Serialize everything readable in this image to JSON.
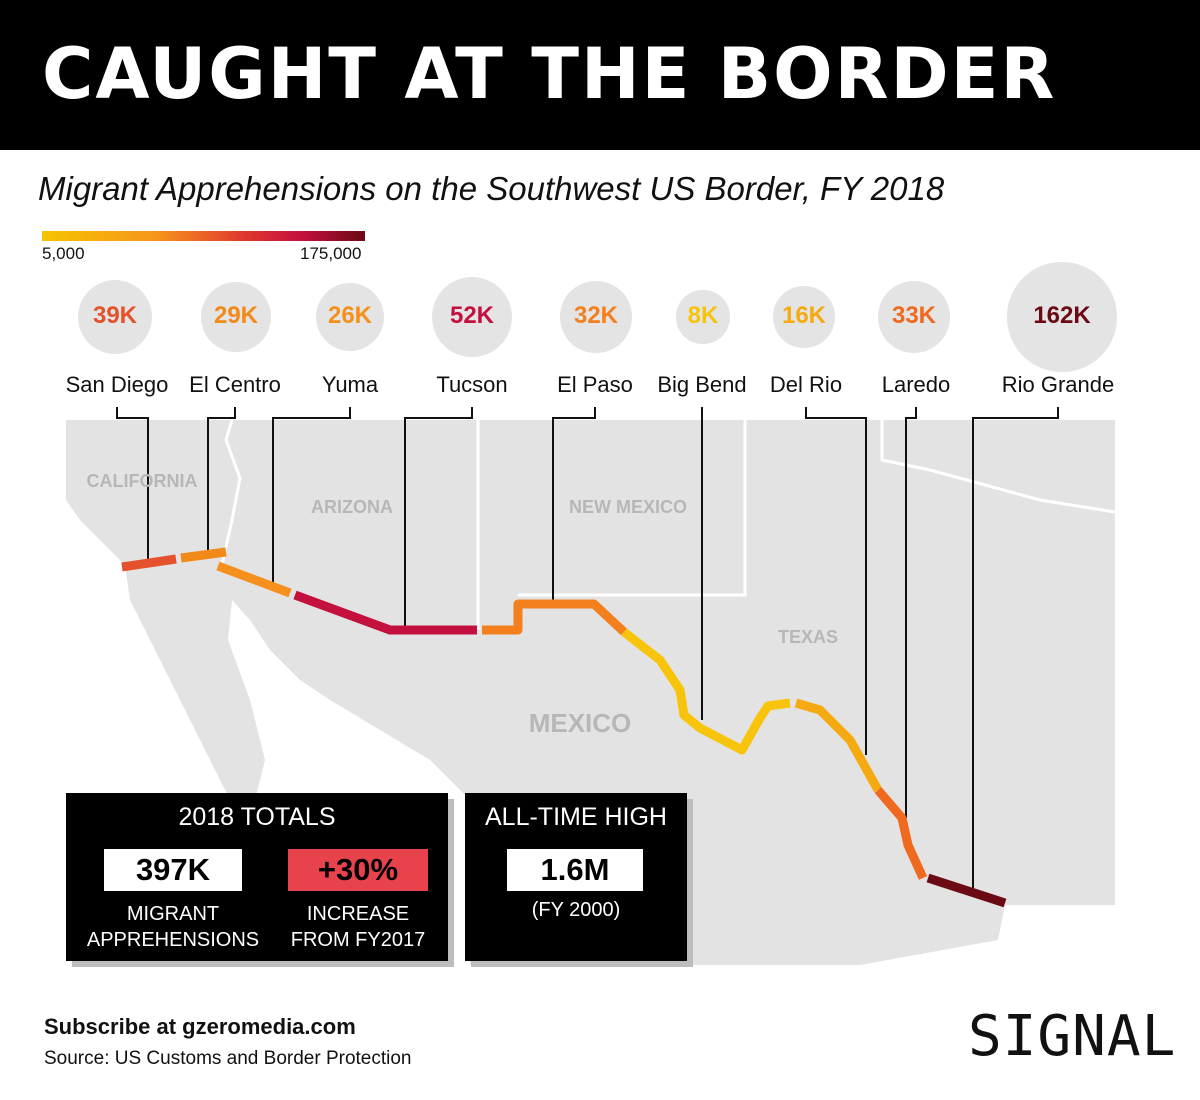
{
  "title": "CAUGHT AT THE BORDER",
  "subtitle": "Migrant Apprehensions on the Southwest US Border, FY 2018",
  "legend": {
    "min_label": "5,000",
    "max_label": "175,000",
    "min": 5000,
    "max": 175000,
    "colors": [
      "#f5c400",
      "#f7961c",
      "#e03a2d",
      "#c4103e",
      "#6b0a15"
    ]
  },
  "map_labels": {
    "california": "CALIFORNIA",
    "arizona": "ARIZONA",
    "new_mexico": "NEW MEXICO",
    "texas": "TEXAS",
    "mexico": "MEXICO"
  },
  "sectors": [
    {
      "name": "San Diego",
      "value_label": "39K",
      "value": 39000,
      "color": "#e4512b"
    },
    {
      "name": "El Centro",
      "value_label": "29K",
      "value": 29000,
      "color": "#f28a1a"
    },
    {
      "name": "Yuma",
      "value_label": "26K",
      "value": 26000,
      "color": "#f4901b"
    },
    {
      "name": "Tucson",
      "value_label": "52K",
      "value": 52000,
      "color": "#c4103e"
    },
    {
      "name": "El Paso",
      "value_label": "32K",
      "value": 32000,
      "color": "#f37f1d"
    },
    {
      "name": "Big Bend",
      "value_label": "8K",
      "value": 8000,
      "color": "#f7c40b"
    },
    {
      "name": "Del Rio",
      "value_label": "16K",
      "value": 16000,
      "color": "#f6aa12"
    },
    {
      "name": "Laredo",
      "value_label": "33K",
      "value": 33000,
      "color": "#ef6a1f"
    },
    {
      "name": "Rio Grande",
      "value_label": "162K",
      "value": 162000,
      "color": "#6b0a15"
    }
  ],
  "totals": {
    "heading": "2018 TOTALS",
    "apprehensions_value": "397K",
    "apprehensions_caption_1": "MIGRANT",
    "apprehensions_caption_2": "APPREHENSIONS",
    "increase_value": "+30%",
    "increase_caption_1": "INCREASE",
    "increase_caption_2": "FROM FY2017"
  },
  "high": {
    "heading": "ALL-TIME HIGH",
    "value": "1.6M",
    "caption": "(FY 2000)"
  },
  "footer": {
    "subscribe": "Subscribe at gzeromedia.com",
    "source": "Source: US Customs and Border Protection",
    "logo": "SIGNAL"
  }
}
